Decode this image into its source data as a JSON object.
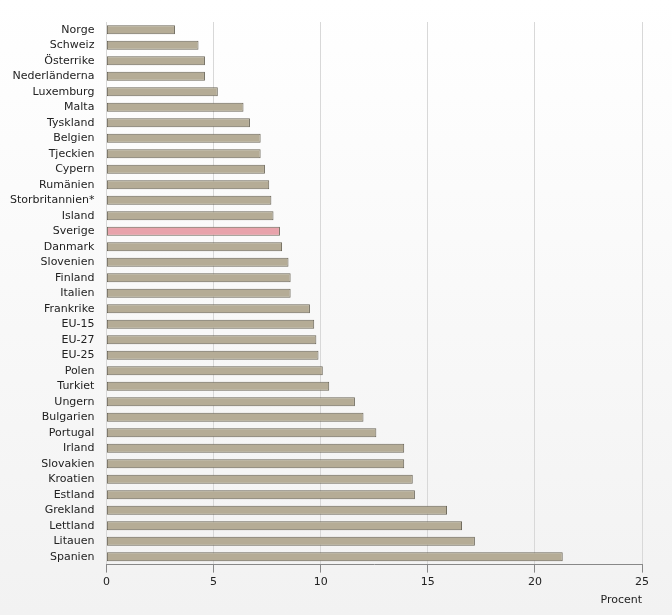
{
  "chart_data": {
    "type": "bar",
    "orientation": "horizontal",
    "x_label": "Procent",
    "categories": [
      "Norge",
      "Schweiz",
      "Österrike",
      "Nederländerna",
      "Luxemburg",
      "Malta",
      "Tyskland",
      "Belgien",
      "Tjeckien",
      "Cypern",
      "Rumänien",
      "Storbritannien*",
      "Island",
      "Sverige",
      "Danmark",
      "Slovenien",
      "Finland",
      "Italien",
      "Frankrike",
      "EU-15",
      "EU-27",
      "EU-25",
      "Polen",
      "Turkiet",
      "Ungern",
      "Bulgarien",
      "Portugal",
      "Irland",
      "Slovakien",
      "Kroatien",
      "Estland",
      "Grekland",
      "Lettland",
      "Litauen",
      "Spanien"
    ],
    "values": [
      3.2,
      4.3,
      4.6,
      4.6,
      5.2,
      6.4,
      6.7,
      7.2,
      7.2,
      7.4,
      7.6,
      7.7,
      7.8,
      8.1,
      8.2,
      8.5,
      8.6,
      8.6,
      9.5,
      9.7,
      9.8,
      9.9,
      10.1,
      10.4,
      11.6,
      12.0,
      12.6,
      13.9,
      13.9,
      14.3,
      14.4,
      15.9,
      16.6,
      17.2,
      21.3
    ],
    "colors": [
      "#b5ac96",
      "#b5ac96",
      "#b5ac96",
      "#b5ac96",
      "#b5ac96",
      "#b5ac96",
      "#b5ac96",
      "#b5ac96",
      "#b5ac96",
      "#b5ac96",
      "#b5ac96",
      "#b5ac96",
      "#b5ac96",
      "#e8a3ab",
      "#b5ac96",
      "#b5ac96",
      "#b5ac96",
      "#b5ac96",
      "#b5ac96",
      "#b5ac96",
      "#b5ac96",
      "#b5ac96",
      "#b5ac96",
      "#b5ac96",
      "#b5ac96",
      "#b5ac96",
      "#b5ac96",
      "#b5ac96",
      "#b5ac96",
      "#b5ac96",
      "#b5ac96",
      "#b5ac96",
      "#b5ac96",
      "#b5ac96",
      "#b5ac96"
    ],
    "xlim": [
      0,
      25
    ],
    "xticks": [
      0,
      5,
      10,
      15,
      20,
      25
    ],
    "grid": true
  }
}
